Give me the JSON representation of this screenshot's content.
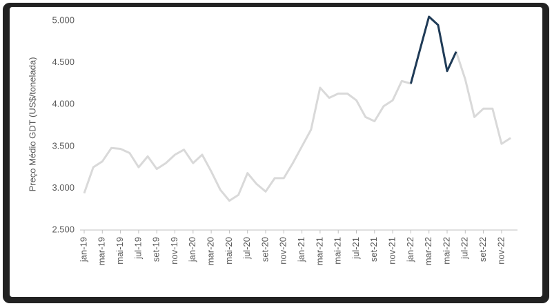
{
  "chart_data": {
    "type": "line",
    "y_label": "Preço Médio GDT (US$/tonelada)",
    "categories": [
      "jan-19",
      null,
      "mar-19",
      null,
      "mai-19",
      null,
      "jul-19",
      null,
      "set-19",
      null,
      "nov-19",
      null,
      "jan-20",
      null,
      "mar-20",
      null,
      "mai-20",
      null,
      "jul-20",
      null,
      "set-20",
      null,
      "nov-20",
      null,
      "jan-21",
      null,
      "mar-21",
      null,
      "mai-21",
      null,
      "jul-21",
      null,
      "set-21",
      null,
      "nov-21",
      null,
      "jan-22",
      null,
      "mar-22",
      null,
      "mai-22",
      null,
      "jul-22",
      null,
      "set-22",
      null,
      "nov-22",
      null
    ],
    "series": [
      {
        "color": "#d9d9d9",
        "values": [
          2940,
          3250,
          3320,
          3480,
          3470,
          3420,
          3250,
          3380,
          3230,
          3300,
          3400,
          3460,
          3300,
          3400,
          3200,
          2980,
          2850,
          2920,
          3180,
          3050,
          2960,
          3120,
          3120,
          3300,
          3500,
          3700,
          4200,
          4080,
          4130,
          4130,
          4050,
          3850,
          3800,
          3980,
          4050,
          4280,
          4250,
          4650,
          5050,
          4950,
          4400,
          4630,
          4300,
          3850,
          3950,
          3950,
          3530,
          3600
        ]
      },
      {
        "color": "#1f3b57",
        "values": [
          null,
          null,
          null,
          null,
          null,
          null,
          null,
          null,
          null,
          null,
          null,
          null,
          null,
          null,
          null,
          null,
          null,
          null,
          null,
          null,
          null,
          null,
          null,
          null,
          null,
          null,
          null,
          null,
          null,
          null,
          null,
          null,
          null,
          null,
          null,
          null,
          4250,
          4650,
          5050,
          4950,
          4400,
          4630,
          null,
          null,
          null,
          null,
          null,
          null
        ]
      }
    ],
    "ylim": [
      2500,
      5100
    ],
    "yticks": [
      {
        "value": 2500,
        "label": "2.500"
      },
      {
        "value": 3000,
        "label": "3.000"
      },
      {
        "value": 3500,
        "label": "3.500"
      },
      {
        "value": 4000,
        "label": "4.000"
      },
      {
        "value": 4500,
        "label": "4.500"
      },
      {
        "value": 5000,
        "label": "5.000"
      }
    ],
    "grid": false
  }
}
